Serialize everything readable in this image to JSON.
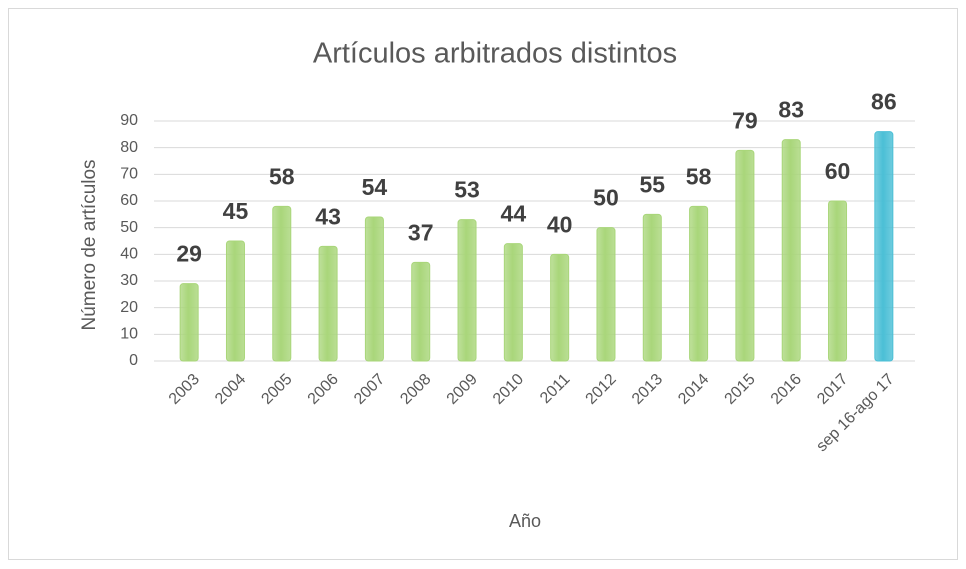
{
  "chart_data": {
    "type": "bar",
    "title": "Artículos arbitrados distintos",
    "x_label": "Año",
    "y_label": "Número de artículos",
    "categories": [
      "2003",
      "2004",
      "2005",
      "2006",
      "2007",
      "2008",
      "2009",
      "2010",
      "2011",
      "2012",
      "2013",
      "2014",
      "2015",
      "2016",
      "2017",
      "sep 16-ago 17"
    ],
    "values": [
      29,
      45,
      58,
      43,
      54,
      37,
      53,
      44,
      40,
      50,
      55,
      58,
      79,
      83,
      60,
      86
    ],
    "colors": [
      "#a9d67a",
      "#a9d67a",
      "#a9d67a",
      "#a9d67a",
      "#a9d67a",
      "#a9d67a",
      "#a9d67a",
      "#a9d67a",
      "#a9d67a",
      "#a9d67a",
      "#a9d67a",
      "#a9d67a",
      "#a9d67a",
      "#a9d67a",
      "#a9d67a",
      "#4bbfd6"
    ],
    "ylim": [
      0,
      90
    ],
    "yticks": [
      0,
      10,
      20,
      30,
      40,
      50,
      60,
      70,
      80,
      90
    ],
    "grid": true
  }
}
